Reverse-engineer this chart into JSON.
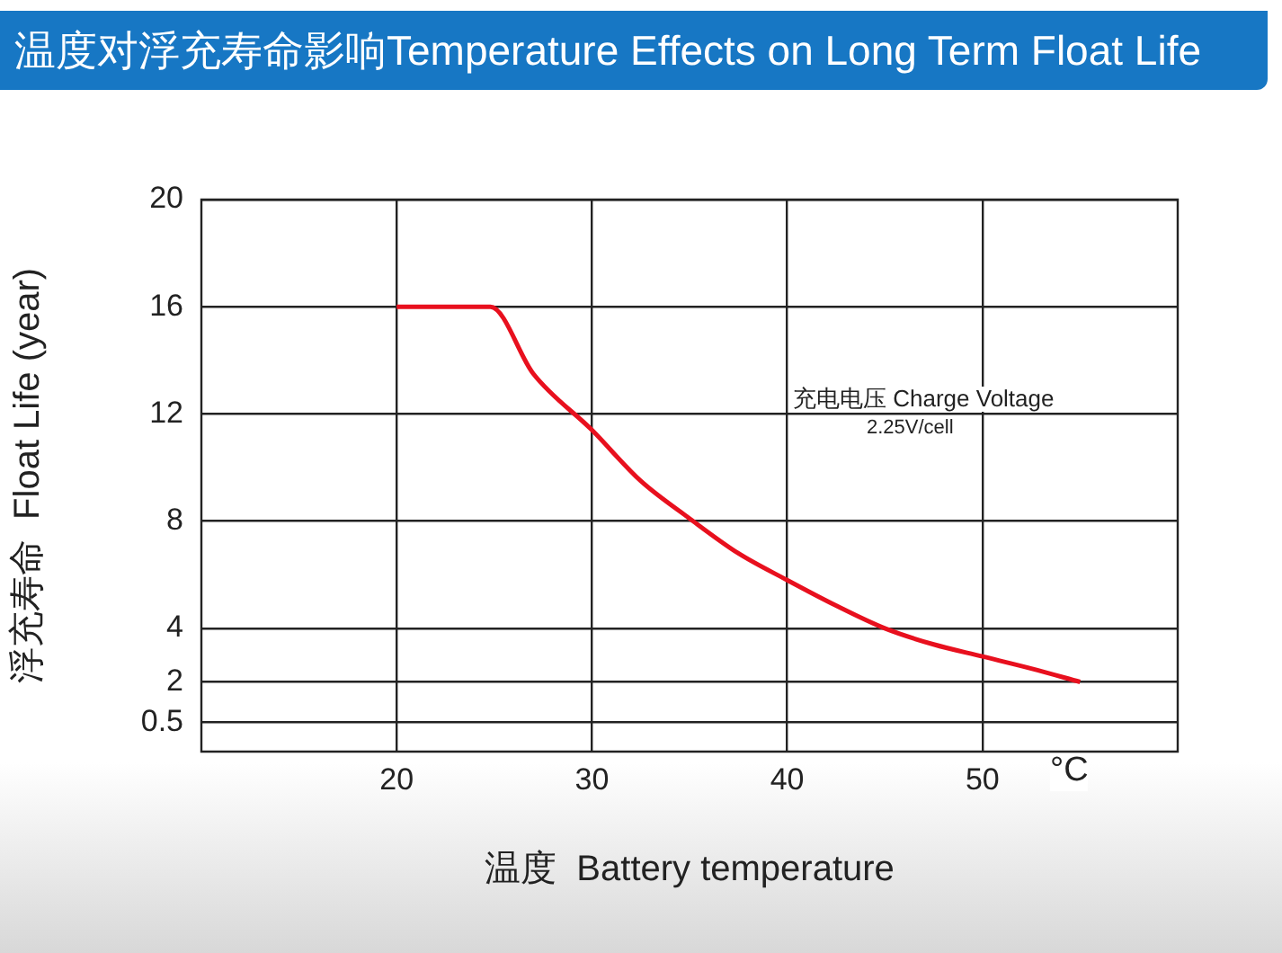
{
  "chart_data": {
    "type": "line",
    "title": "温度对浮充寿命影响Temperature Effects on Long Term Float Life",
    "xlabel": "温度  Battery temperature",
    "ylabel": "浮充寿命  Float Life (year)",
    "x": [
      20,
      24.8,
      27,
      30,
      32.5,
      35,
      37.5,
      40,
      42.5,
      45,
      47.5,
      50,
      52.5,
      55
    ],
    "series": [
      {
        "color": "#e8101e",
        "values": [
          16,
          16,
          13.5,
          11.4,
          9.5,
          8.1,
          6.8,
          5.8,
          4.85,
          4.0,
          3.4,
          2.95,
          2.5,
          2
        ]
      }
    ],
    "xlim": [
      10,
      60
    ],
    "xticks": [
      20,
      30,
      40,
      50
    ],
    "ylim": [
      -0.6,
      20
    ],
    "yticks": [
      0.5,
      2,
      4,
      8,
      12,
      16,
      20
    ],
    "grid": true,
    "legend": false,
    "marker": "none",
    "line_style": "solid",
    "annotations": [
      "充电电压 Charge Voltage",
      "2.25V/cell",
      "°C"
    ]
  }
}
